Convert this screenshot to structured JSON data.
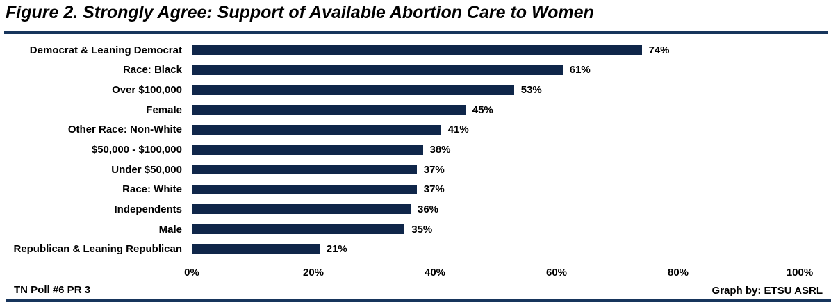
{
  "title": "Figure 2. Strongly Agree: Support of Available Abortion Care to Women",
  "footer": {
    "left": "TN Poll #6 PR 3",
    "right": "Graph by: ETSU ASRL"
  },
  "colors": {
    "bar": "#0f2649",
    "rule": "#17355c",
    "axis_line": "#bfbfbf",
    "text": "#000000"
  },
  "chart_data": {
    "type": "bar",
    "orientation": "horizontal",
    "title": "Figure 2. Strongly Agree: Support of Available Abortion Care to Women",
    "categories": [
      "Democrat & Leaning Democrat",
      "Race: Black",
      "Over $100,000",
      "Female",
      "Other Race: Non-White",
      "$50,000 - $100,000",
      "Under $50,000",
      "Race: White",
      "Independents",
      "Male",
      "Republican & Leaning Republican"
    ],
    "values": [
      74,
      61,
      53,
      45,
      41,
      38,
      37,
      37,
      36,
      35,
      21
    ],
    "value_labels": [
      "74%",
      "61%",
      "53%",
      "45%",
      "41%",
      "38%",
      "37%",
      "37%",
      "36%",
      "35%",
      "21%"
    ],
    "xlabel": "",
    "ylabel": "",
    "x_ticks": [
      "0%",
      "20%",
      "40%",
      "60%",
      "80%",
      "100%"
    ],
    "x_tick_values": [
      0,
      20,
      40,
      60,
      80,
      100
    ],
    "xlim": [
      0,
      100
    ],
    "grid": false,
    "legend": false
  }
}
